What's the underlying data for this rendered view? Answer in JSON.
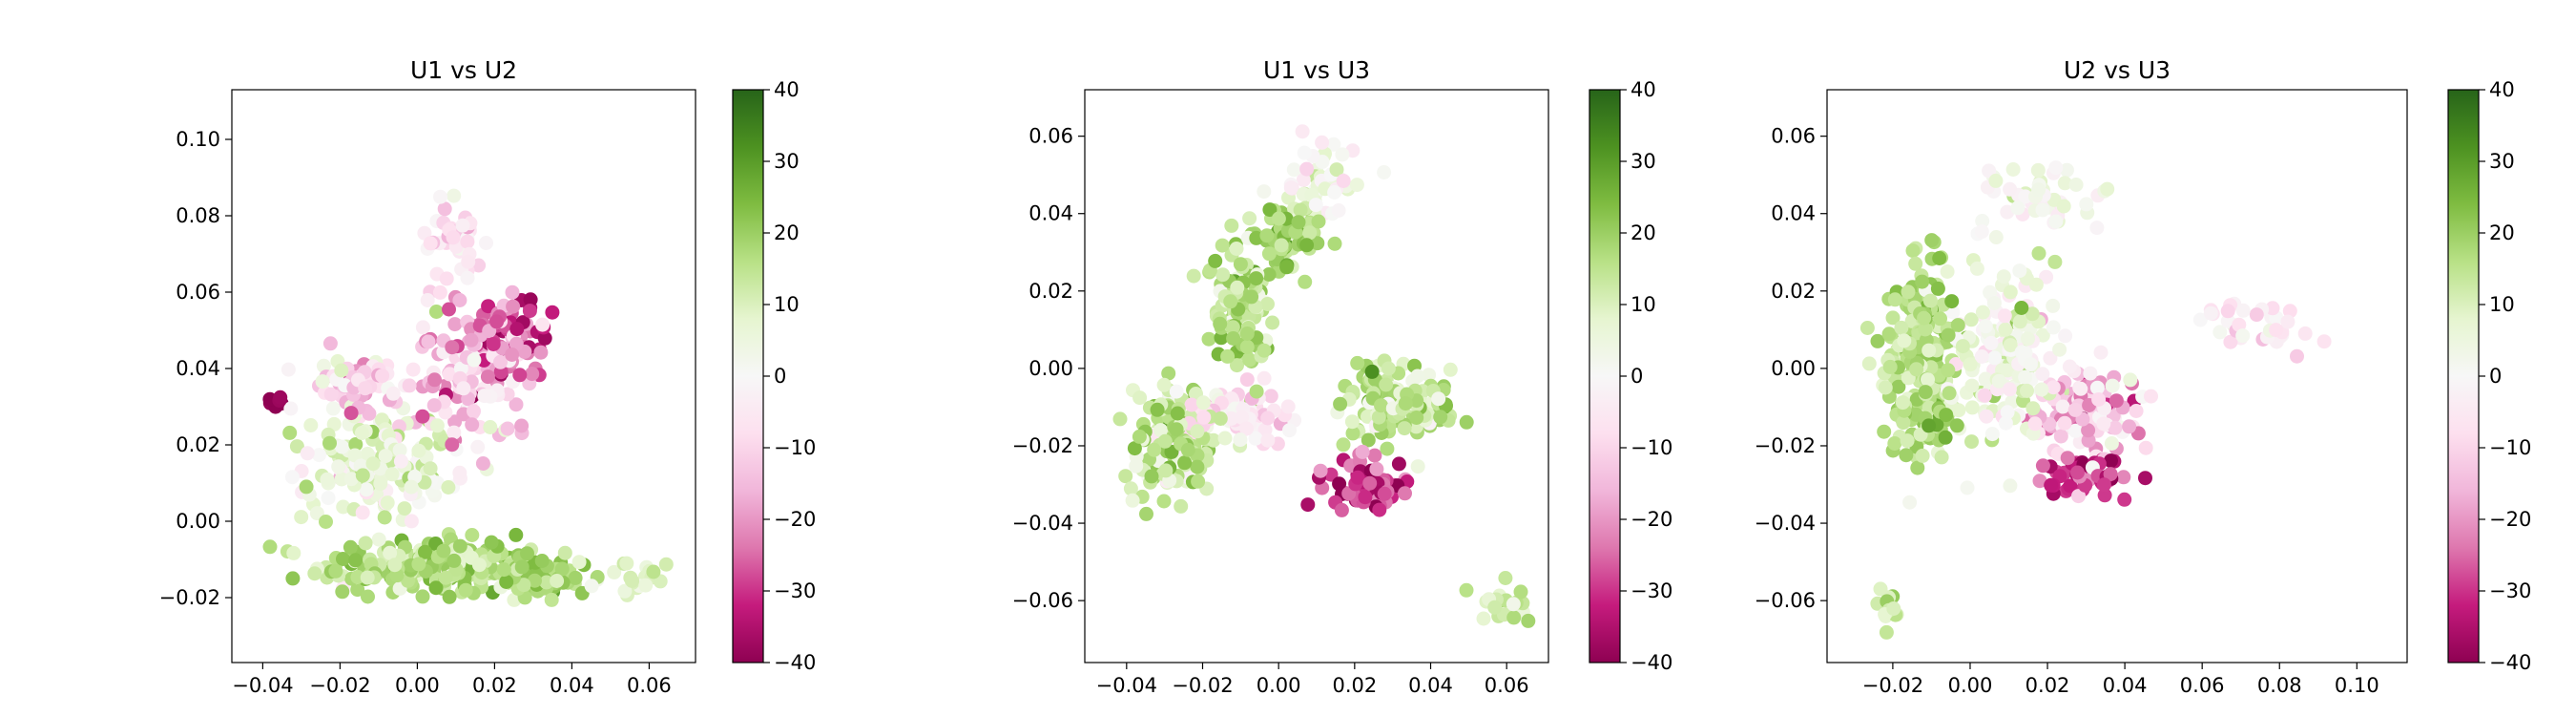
{
  "chart_data": [
    {
      "type": "scatter",
      "title": "U1 vs U2",
      "xlim": [
        -0.048,
        0.072
      ],
      "ylim": [
        -0.037,
        0.113
      ],
      "xticks": [
        "−0.04",
        "−0.02",
        "0.00",
        "0.02",
        "0.04",
        "0.06"
      ],
      "xtick_values": [
        -0.04,
        -0.02,
        0.0,
        0.02,
        0.04,
        0.06
      ],
      "yticks": [
        "−0.02",
        "0.00",
        "0.02",
        "0.04",
        "0.06",
        "0.08",
        "0.10"
      ],
      "ytick_values": [
        -0.02,
        0.0,
        0.02,
        0.04,
        0.06,
        0.08,
        0.1
      ],
      "colorbar": {
        "range": [
          -40,
          40
        ],
        "ticks": [
          "−40",
          "−30",
          "−20",
          "−10",
          "0",
          "10",
          "20",
          "30",
          "40"
        ],
        "tick_values": [
          -40,
          -30,
          -20,
          -10,
          0,
          10,
          20,
          30,
          40
        ],
        "colormap": "PiYG"
      },
      "clusters": [
        {
          "center": [
            0.005,
            -0.012
          ],
          "spread": [
            0.025,
            0.006
          ],
          "n": 260,
          "color_mean": 16,
          "color_sd": 5
        },
        {
          "center": [
            0.03,
            -0.015
          ],
          "spread": [
            0.01,
            0.004
          ],
          "n": 80,
          "color_mean": 18,
          "color_sd": 5
        },
        {
          "center": [
            -0.01,
            0.015
          ],
          "spread": [
            0.016,
            0.012
          ],
          "n": 170,
          "color_mean": 6,
          "color_sd": 6
        },
        {
          "center": [
            -0.015,
            0.035
          ],
          "spread": [
            0.012,
            0.008
          ],
          "n": 60,
          "color_mean": -10,
          "color_sd": 8
        },
        {
          "center": [
            0.015,
            0.04
          ],
          "spread": [
            0.014,
            0.015
          ],
          "n": 140,
          "color_mean": -14,
          "color_sd": 9
        },
        {
          "center": [
            0.025,
            0.05
          ],
          "spread": [
            0.01,
            0.008
          ],
          "n": 50,
          "color_mean": -28,
          "color_sd": 6
        },
        {
          "center": [
            0.01,
            0.075
          ],
          "spread": [
            0.006,
            0.012
          ],
          "n": 40,
          "color_mean": -6,
          "color_sd": 5
        },
        {
          "center": [
            -0.036,
            0.031
          ],
          "spread": [
            0.002,
            0.002
          ],
          "n": 8,
          "color_mean": -38,
          "color_sd": 2
        },
        {
          "center": [
            0.055,
            -0.015
          ],
          "spread": [
            0.008,
            0.004
          ],
          "n": 20,
          "color_mean": 10,
          "color_sd": 4
        }
      ]
    },
    {
      "type": "scatter",
      "title": "U1 vs U3",
      "xlim": [
        -0.051,
        0.071
      ],
      "ylim": [
        -0.076,
        0.072
      ],
      "xticks": [
        "−0.04",
        "−0.02",
        "0.00",
        "0.02",
        "0.04",
        "0.06"
      ],
      "xtick_values": [
        -0.04,
        -0.02,
        0.0,
        0.02,
        0.04,
        0.06
      ],
      "yticks": [
        "−0.06",
        "−0.04",
        "−0.02",
        "0.00",
        "0.02",
        "0.04",
        "0.06"
      ],
      "ytick_values": [
        -0.06,
        -0.04,
        -0.02,
        0.0,
        0.02,
        0.04,
        0.06
      ],
      "colorbar": {
        "range": [
          -40,
          40
        ],
        "ticks": [
          "−40",
          "−30",
          "−20",
          "−10",
          "0",
          "10",
          "20",
          "30",
          "40"
        ],
        "tick_values": [
          -40,
          -30,
          -20,
          -10,
          0,
          10,
          20,
          30,
          40
        ],
        "colormap": "PiYG"
      },
      "clusters": [
        {
          "center": [
            -0.028,
            -0.02
          ],
          "spread": [
            0.01,
            0.013
          ],
          "n": 130,
          "color_mean": 14,
          "color_sd": 6
        },
        {
          "center": [
            -0.01,
            0.015
          ],
          "spread": [
            0.006,
            0.014
          ],
          "n": 130,
          "color_mean": 16,
          "color_sd": 5
        },
        {
          "center": [
            0.002,
            0.035
          ],
          "spread": [
            0.008,
            0.006
          ],
          "n": 80,
          "color_mean": 18,
          "color_sd": 5
        },
        {
          "center": [
            -0.01,
            -0.012
          ],
          "spread": [
            0.012,
            0.006
          ],
          "n": 80,
          "color_mean": -6,
          "color_sd": 5
        },
        {
          "center": [
            0.03,
            -0.008
          ],
          "spread": [
            0.012,
            0.008
          ],
          "n": 150,
          "color_mean": 14,
          "color_sd": 6
        },
        {
          "center": [
            0.022,
            -0.03
          ],
          "spread": [
            0.009,
            0.007
          ],
          "n": 60,
          "color_mean": -28,
          "color_sd": 8
        },
        {
          "center": [
            0.01,
            0.048
          ],
          "spread": [
            0.01,
            0.008
          ],
          "n": 50,
          "color_mean": 2,
          "color_sd": 5
        },
        {
          "center": [
            0.058,
            -0.062
          ],
          "spread": [
            0.005,
            0.004
          ],
          "n": 22,
          "color_mean": 12,
          "color_sd": 5
        }
      ]
    },
    {
      "type": "scatter",
      "title": "U2 vs U3",
      "xlim": [
        -0.037,
        0.113
      ],
      "ylim": [
        -0.076,
        0.072
      ],
      "xticks": [
        "−0.02",
        "0.00",
        "0.02",
        "0.04",
        "0.06",
        "0.08",
        "0.10"
      ],
      "xtick_values": [
        -0.02,
        0.0,
        0.02,
        0.04,
        0.06,
        0.08,
        0.1
      ],
      "yticks": [
        "−0.06",
        "−0.04",
        "−0.02",
        "0.00",
        "0.02",
        "0.04",
        "0.06"
      ],
      "ytick_values": [
        -0.06,
        -0.04,
        -0.02,
        0.0,
        0.02,
        0.04,
        0.06
      ],
      "colorbar": {
        "range": [
          -40,
          40
        ],
        "ticks": [
          "−40",
          "−30",
          "−20",
          "−10",
          "0",
          "10",
          "20",
          "30",
          "40"
        ],
        "tick_values": [
          -40,
          -30,
          -20,
          -10,
          0,
          10,
          20,
          30,
          40
        ],
        "colormap": "PiYG"
      },
      "clusters": [
        {
          "center": [
            -0.012,
            0.0
          ],
          "spread": [
            0.008,
            0.02
          ],
          "n": 260,
          "color_mean": 16,
          "color_sd": 5
        },
        {
          "center": [
            0.01,
            0.005
          ],
          "spread": [
            0.012,
            0.018
          ],
          "n": 160,
          "color_mean": 4,
          "color_sd": 6
        },
        {
          "center": [
            0.03,
            -0.01
          ],
          "spread": [
            0.014,
            0.01
          ],
          "n": 110,
          "color_mean": -12,
          "color_sd": 9
        },
        {
          "center": [
            0.03,
            -0.028
          ],
          "spread": [
            0.01,
            0.005
          ],
          "n": 50,
          "color_mean": -30,
          "color_sd": 6
        },
        {
          "center": [
            0.075,
            0.01
          ],
          "spread": [
            0.012,
            0.006
          ],
          "n": 35,
          "color_mean": -5,
          "color_sd": 4
        },
        {
          "center": [
            0.02,
            0.045
          ],
          "spread": [
            0.014,
            0.01
          ],
          "n": 50,
          "color_mean": 2,
          "color_sd": 5
        },
        {
          "center": [
            -0.02,
            -0.062
          ],
          "spread": [
            0.003,
            0.004
          ],
          "n": 15,
          "color_mean": 12,
          "color_sd": 4
        }
      ]
    }
  ]
}
